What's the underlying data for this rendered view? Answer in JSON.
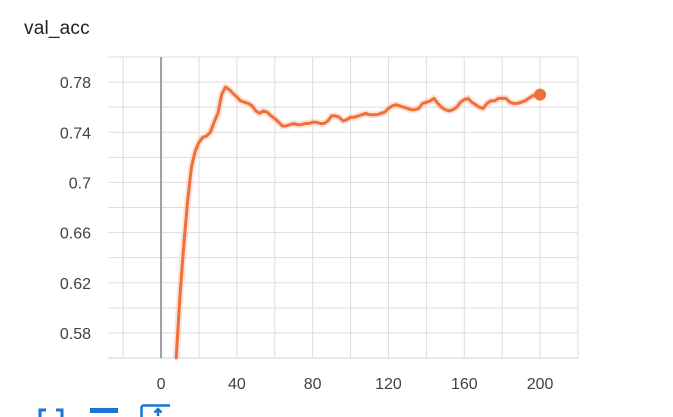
{
  "chart_data": {
    "type": "line",
    "title": "val_acc",
    "xlabel": "",
    "ylabel": "",
    "xlim": [
      -28,
      220
    ],
    "ylim": [
      0.56,
      0.8
    ],
    "x_ticks": [
      0,
      40,
      80,
      120,
      160,
      200
    ],
    "x_tick_labels": [
      "0",
      "40",
      "80",
      "120",
      "160",
      "200"
    ],
    "y_ticks": [
      0.58,
      0.62,
      0.66,
      0.7,
      0.74,
      0.78
    ],
    "y_tick_labels": [
      "0.58",
      "0.62",
      "0.66",
      "0.7",
      "0.74",
      "0.78"
    ],
    "grid": true,
    "colors": {
      "line": "#f0703c",
      "raw": "#f7c2aa",
      "grid": "#dddddd",
      "zero_axis": "#9e9e9e",
      "axis_line": "#cfcfcf"
    },
    "series": [
      {
        "x": [
          8,
          10,
          12,
          14,
          16,
          18,
          20,
          22,
          24,
          26,
          28,
          30,
          32,
          34,
          36,
          38,
          40,
          42,
          44,
          46,
          48,
          50,
          52,
          54,
          56,
          58,
          60,
          62,
          64,
          66,
          68,
          70,
          72,
          74,
          76,
          78,
          80,
          82,
          84,
          86,
          88,
          90,
          92,
          94,
          96,
          98,
          100,
          102,
          104,
          106,
          108,
          110,
          112,
          114,
          116,
          118,
          120,
          122,
          124,
          126,
          128,
          130,
          132,
          134,
          136,
          138,
          140,
          142,
          144,
          146,
          148,
          150,
          152,
          154,
          156,
          158,
          160,
          162,
          164,
          166,
          168,
          170,
          172,
          174,
          176,
          178,
          180,
          182,
          184,
          186,
          188,
          190,
          192,
          194,
          196,
          198,
          200
        ],
        "values": [
          0.56,
          0.61,
          0.65,
          0.685,
          0.712,
          0.725,
          0.732,
          0.736,
          0.737,
          0.74,
          0.748,
          0.755,
          0.77,
          0.776,
          0.774,
          0.771,
          0.768,
          0.765,
          0.764,
          0.763,
          0.761,
          0.757,
          0.755,
          0.757,
          0.756,
          0.753,
          0.751,
          0.748,
          0.745,
          0.745,
          0.746,
          0.747,
          0.746,
          0.746,
          0.747,
          0.747,
          0.748,
          0.748,
          0.747,
          0.747,
          0.749,
          0.753,
          0.753,
          0.752,
          0.749,
          0.75,
          0.752,
          0.752,
          0.753,
          0.754,
          0.755,
          0.754,
          0.754,
          0.754,
          0.755,
          0.756,
          0.759,
          0.761,
          0.762,
          0.761,
          0.76,
          0.759,
          0.758,
          0.758,
          0.759,
          0.763,
          0.764,
          0.765,
          0.767,
          0.763,
          0.76,
          0.758,
          0.757,
          0.758,
          0.76,
          0.764,
          0.766,
          0.767,
          0.764,
          0.762,
          0.76,
          0.759,
          0.763,
          0.765,
          0.765,
          0.767,
          0.767,
          0.767,
          0.764,
          0.763,
          0.763,
          0.764,
          0.765,
          0.767,
          0.769,
          0.77,
          0.77
        ]
      }
    ]
  },
  "toolbar": {
    "icons": [
      "fit-domain-icon",
      "log-scale-icon",
      "download-icon"
    ]
  }
}
